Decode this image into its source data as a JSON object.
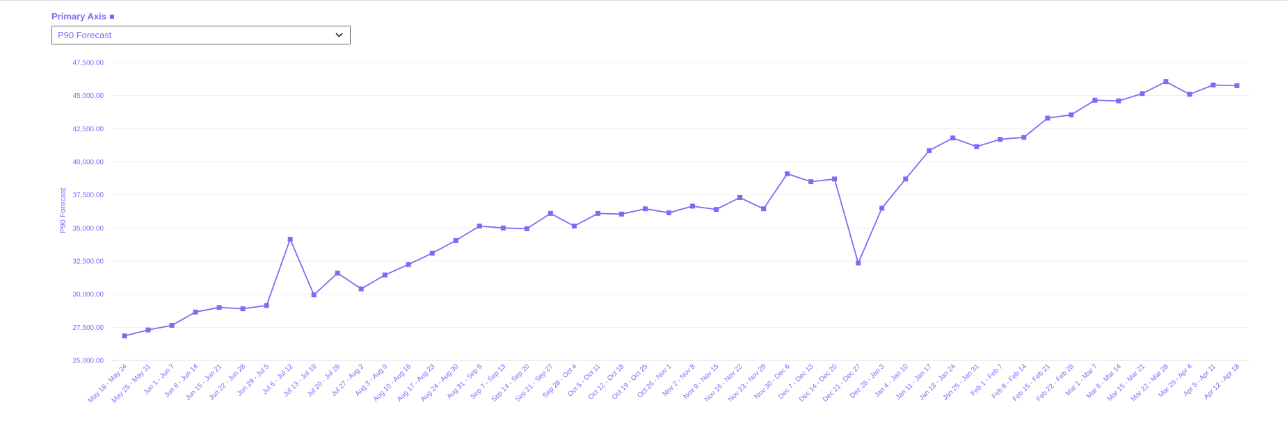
{
  "axis_selector": {
    "header_label": "Primary Axis",
    "selected_value": "P90 Forecast"
  },
  "colors": {
    "series": "#7b6cf6",
    "grid": "#eeeeee",
    "axis_text": "#7b6cf6"
  },
  "chart_data": {
    "type": "line",
    "title": "",
    "xlabel": "",
    "ylabel": "P90 Forecast",
    "ylim": [
      25000,
      47500
    ],
    "y_ticks": [
      25000,
      27500,
      30000,
      32500,
      35000,
      37500,
      40000,
      42500,
      45000,
      47500
    ],
    "y_tick_labels": [
      "25,000.00",
      "27,500.00",
      "30,000.00",
      "32,500.00",
      "35,000.00",
      "37,500.00",
      "40,000.00",
      "42,500.00",
      "45,000.00",
      "47,500.00"
    ],
    "grid": true,
    "marker": "square",
    "categories": [
      "May 18 - May 24",
      "May 25 - May 31",
      "Jun 1 - Jun 7",
      "Jun 8 - Jun 14",
      "Jun 15 - Jun 21",
      "Jun 22 - Jun 28",
      "Jun 29 - Jul 5",
      "Jul 6 - Jul 12",
      "Jul 13 - Jul 19",
      "Jul 20 - Jul 26",
      "Jul 27 - Aug 2",
      "Aug 3 - Aug 9",
      "Aug 10 - Aug 16",
      "Aug 17 - Aug 23",
      "Aug 24 - Aug 30",
      "Aug 31 - Sep 6",
      "Sep 7 - Sep 13",
      "Sep 14 - Sep 20",
      "Sep 21 - Sep 27",
      "Sep 28 - Oct 4",
      "Oct 5 - Oct 11",
      "Oct 12 - Oct 18",
      "Oct 19 - Oct 25",
      "Oct 26 - Nov 1",
      "Nov 2 - Nov 8",
      "Nov 9 - Nov 15",
      "Nov 16 - Nov 22",
      "Nov 23 - Nov 29",
      "Nov 30 - Dec 6",
      "Dec 7 - Dec 13",
      "Dec 14 - Dec 20",
      "Dec 21 - Dec 27",
      "Dec 28 - Jan 3",
      "Jan 4 - Jan 10",
      "Jan 11 - Jan 17",
      "Jan 18 - Jan 24",
      "Jan 25 - Jan 31",
      "Feb 1 - Feb 7",
      "Feb 8 - Feb 14",
      "Feb 15 - Feb 21",
      "Feb 22 - Feb 28",
      "Mar 1 - Mar 7",
      "Mar 8 - Mar 14",
      "Mar 15 - Mar 21",
      "Mar 22 - Mar 28",
      "Mar 29 - Apr 4",
      "Apr 5 - Apr 11",
      "Apr 12 - Apr 18"
    ],
    "series": [
      {
        "values": [
          26850,
          27300,
          27650,
          28650,
          29000,
          28900,
          29150,
          34150,
          29950,
          31600,
          30400,
          31450,
          32250,
          33100,
          34050,
          35150,
          35000,
          34950,
          36100,
          35150,
          36100,
          36050,
          36450,
          36150,
          36650,
          36400,
          37300,
          36450,
          39100,
          38500,
          38700,
          32350,
          36500,
          38700,
          40850,
          41800,
          41150,
          41700,
          41850,
          43300,
          43550,
          44650,
          44600,
          45150,
          46050,
          45100,
          45800,
          45750
        ]
      }
    ]
  }
}
